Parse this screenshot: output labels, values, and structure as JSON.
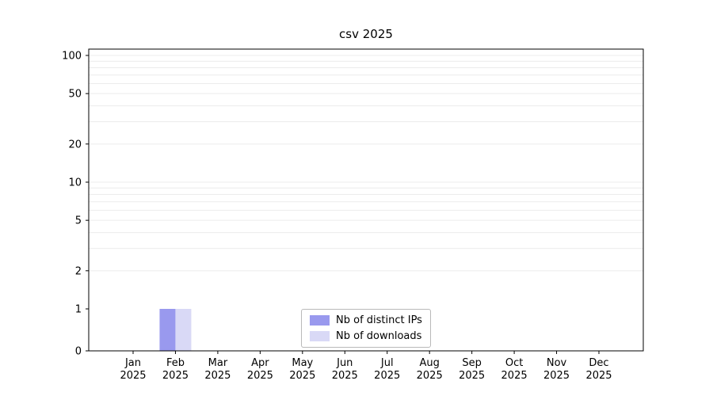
{
  "title": "csv 2025",
  "chart_data": {
    "type": "bar",
    "title": "csv 2025",
    "categories": [
      "Jan 2025",
      "Feb 2025",
      "Mar 2025",
      "Apr 2025",
      "May 2025",
      "Jun 2025",
      "Jul 2025",
      "Aug 2025",
      "Sep 2025",
      "Oct 2025",
      "Nov 2025",
      "Dec 2025"
    ],
    "series": [
      {
        "name": "Nb of distinct IPs",
        "color": "#9999ee",
        "values": [
          0,
          1,
          0,
          0,
          0,
          0,
          0,
          0,
          0,
          0,
          0,
          0
        ]
      },
      {
        "name": "Nb of downloads",
        "color": "#d9d9f6",
        "values": [
          0,
          1,
          0,
          0,
          0,
          0,
          0,
          0,
          0,
          0,
          0,
          0
        ]
      }
    ],
    "xlabel": "",
    "ylabel": "",
    "yscale": "symlog",
    "ylim": [
      0,
      112
    ],
    "y_ticks": [
      0,
      1,
      2,
      5,
      10,
      20,
      50,
      100
    ],
    "y_minor_gridlines": [
      2,
      3,
      4,
      5,
      6,
      7,
      8,
      9,
      10,
      20,
      30,
      40,
      50,
      60,
      70,
      80,
      90,
      100
    ],
    "grid": "on",
    "grid_color": "#ececec",
    "axis_color": "#000000",
    "legend_position": "lower center"
  }
}
